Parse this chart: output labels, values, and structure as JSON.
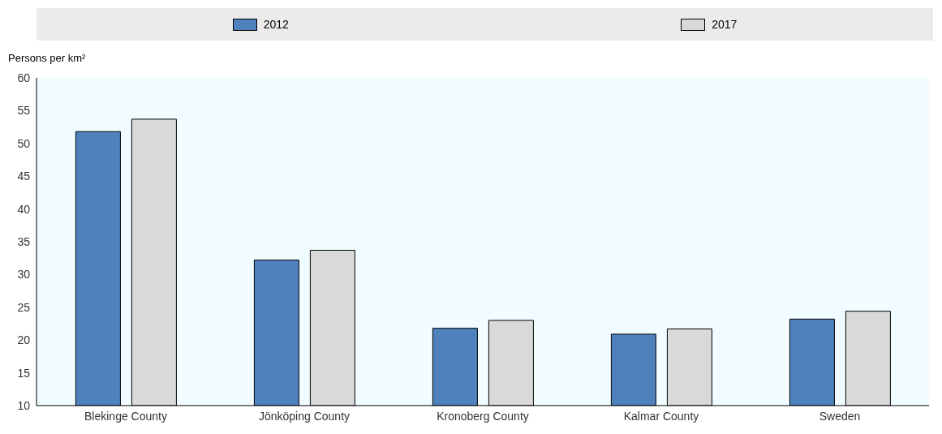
{
  "chart_data": {
    "type": "bar",
    "ylabel": "Persons per km²",
    "categories": [
      "Blekinge County",
      "Jönköping County",
      "Kronoberg County",
      "Kalmar County",
      "Sweden"
    ],
    "series": [
      {
        "name": "2012",
        "color": "#4f81bd",
        "values": [
          51.8,
          32.2,
          21.8,
          20.9,
          23.2
        ]
      },
      {
        "name": "2017",
        "color": "#d9d9d9",
        "values": [
          53.7,
          33.7,
          23.0,
          21.7,
          24.4
        ]
      }
    ],
    "ylim": [
      10,
      60
    ],
    "yticks": [
      10,
      15,
      20,
      25,
      30,
      35,
      40,
      45,
      50,
      55,
      60
    ],
    "legend": "top"
  }
}
